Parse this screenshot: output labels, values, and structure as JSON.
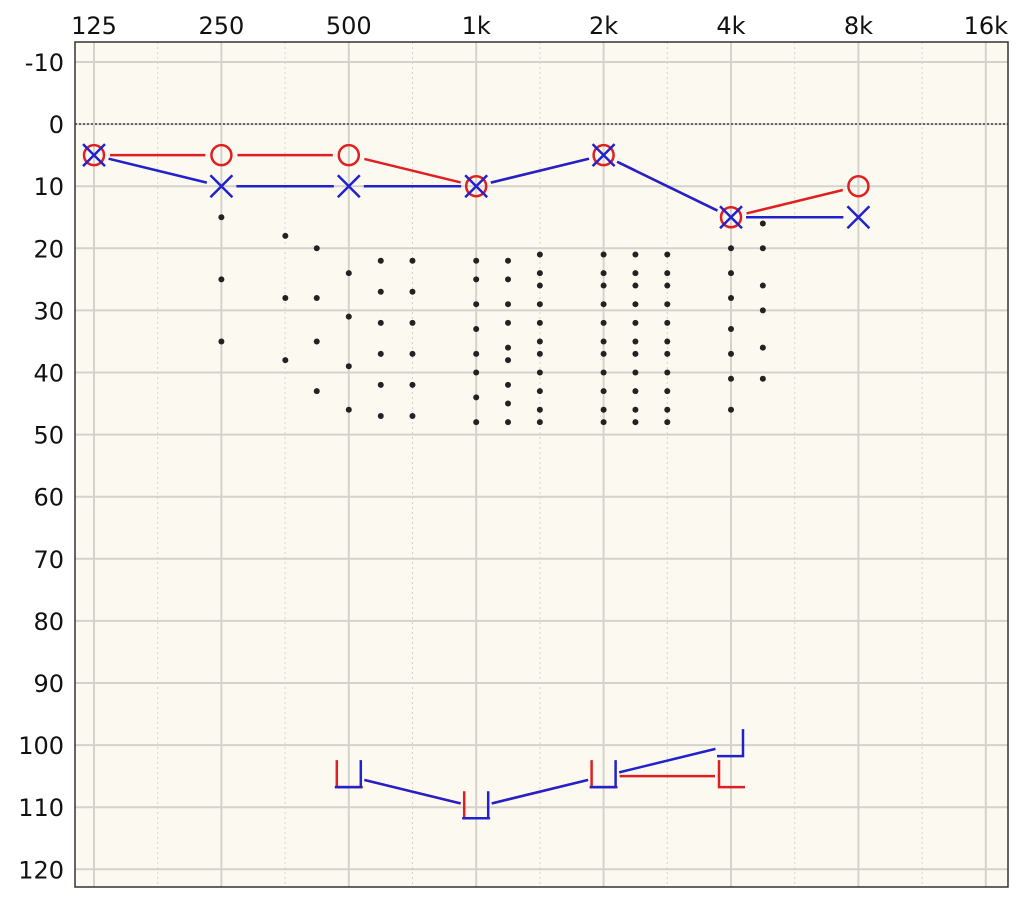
{
  "chart_data": {
    "type": "line",
    "x_ticks": [
      "125",
      "250",
      "500",
      "1k",
      "2k",
      "4k",
      "8k",
      "16k"
    ],
    "x_values": [
      125,
      250,
      500,
      1000,
      2000,
      4000,
      8000,
      16000
    ],
    "x_scale": "log2",
    "y_ticks": [
      "-10",
      "0",
      "10",
      "20",
      "30",
      "40",
      "50",
      "60",
      "70",
      "80",
      "90",
      "100",
      "110",
      "120"
    ],
    "ylim": [
      -10,
      120
    ],
    "y_inverted": true,
    "grid": true,
    "colors": {
      "background": "#fcfaf0",
      "grid": "#d4d2cc",
      "red": "#e02020",
      "blue": "#2222cc",
      "dots": "#222222"
    },
    "series": [
      {
        "symbol": "circle",
        "color": "#e02020",
        "points": [
          [
            125,
            5
          ],
          [
            250,
            5
          ],
          [
            500,
            5
          ],
          [
            1000,
            10
          ],
          [
            2000,
            5
          ],
          [
            4000,
            15
          ],
          [
            8000,
            10
          ]
        ]
      },
      {
        "symbol": "x",
        "color": "#2222cc",
        "points": [
          [
            125,
            5
          ],
          [
            250,
            10
          ],
          [
            500,
            10
          ],
          [
            1000,
            10
          ],
          [
            2000,
            5
          ],
          [
            4000,
            15
          ],
          [
            8000,
            15
          ]
        ]
      },
      {
        "symbol": "bracket-right",
        "color": "#e02020",
        "points": [
          [
            500,
            105
          ],
          [
            1000,
            110
          ],
          [
            2000,
            105
          ],
          [
            4000,
            105
          ]
        ]
      },
      {
        "symbol": "bracket-left",
        "color": "#2222cc",
        "points": [
          [
            500,
            105
          ],
          [
            1000,
            110
          ],
          [
            2000,
            105
          ],
          [
            4000,
            100
          ]
        ]
      }
    ],
    "speech_banana_dots": [
      [
        250,
        15
      ],
      [
        250,
        25
      ],
      [
        250,
        35
      ],
      [
        354,
        18
      ],
      [
        354,
        28
      ],
      [
        354,
        38
      ],
      [
        420,
        20
      ],
      [
        420,
        28
      ],
      [
        420,
        35
      ],
      [
        420,
        43
      ],
      [
        500,
        24
      ],
      [
        500,
        31
      ],
      [
        500,
        39
      ],
      [
        500,
        46
      ],
      [
        595,
        22
      ],
      [
        595,
        27
      ],
      [
        595,
        32
      ],
      [
        595,
        37
      ],
      [
        595,
        42
      ],
      [
        595,
        47
      ],
      [
        707,
        22
      ],
      [
        707,
        27
      ],
      [
        707,
        32
      ],
      [
        707,
        37
      ],
      [
        707,
        42
      ],
      [
        707,
        47
      ],
      [
        1000,
        22
      ],
      [
        1000,
        25
      ],
      [
        1000,
        29
      ],
      [
        1000,
        33
      ],
      [
        1000,
        37
      ],
      [
        1000,
        40
      ],
      [
        1000,
        44
      ],
      [
        1000,
        48
      ],
      [
        1189,
        22
      ],
      [
        1189,
        25
      ],
      [
        1189,
        29
      ],
      [
        1189,
        32
      ],
      [
        1189,
        36
      ],
      [
        1189,
        38
      ],
      [
        1189,
        42
      ],
      [
        1189,
        45
      ],
      [
        1189,
        48
      ],
      [
        1414,
        21
      ],
      [
        1414,
        24
      ],
      [
        1414,
        26
      ],
      [
        1414,
        29
      ],
      [
        1414,
        32
      ],
      [
        1414,
        35
      ],
      [
        1414,
        37
      ],
      [
        1414,
        40
      ],
      [
        1414,
        43
      ],
      [
        1414,
        46
      ],
      [
        1414,
        48
      ],
      [
        2000,
        21
      ],
      [
        2000,
        24
      ],
      [
        2000,
        26
      ],
      [
        2000,
        29
      ],
      [
        2000,
        32
      ],
      [
        2000,
        35
      ],
      [
        2000,
        37
      ],
      [
        2000,
        40
      ],
      [
        2000,
        43
      ],
      [
        2000,
        46
      ],
      [
        2000,
        48
      ],
      [
        2378,
        21
      ],
      [
        2378,
        24
      ],
      [
        2378,
        26
      ],
      [
        2378,
        29
      ],
      [
        2378,
        32
      ],
      [
        2378,
        35
      ],
      [
        2378,
        37
      ],
      [
        2378,
        40
      ],
      [
        2378,
        43
      ],
      [
        2378,
        46
      ],
      [
        2378,
        48
      ],
      [
        2828,
        21
      ],
      [
        2828,
        24
      ],
      [
        2828,
        26
      ],
      [
        2828,
        29
      ],
      [
        2828,
        32
      ],
      [
        2828,
        35
      ],
      [
        2828,
        37
      ],
      [
        2828,
        40
      ],
      [
        2828,
        43
      ],
      [
        2828,
        46
      ],
      [
        2828,
        48
      ],
      [
        4000,
        20
      ],
      [
        4000,
        24
      ],
      [
        4000,
        28
      ],
      [
        4000,
        33
      ],
      [
        4000,
        37
      ],
      [
        4000,
        41
      ],
      [
        4000,
        46
      ],
      [
        4757,
        16
      ],
      [
        4757,
        20
      ],
      [
        4757,
        26
      ],
      [
        4757,
        30
      ],
      [
        4757,
        36
      ],
      [
        4757,
        41
      ]
    ]
  }
}
